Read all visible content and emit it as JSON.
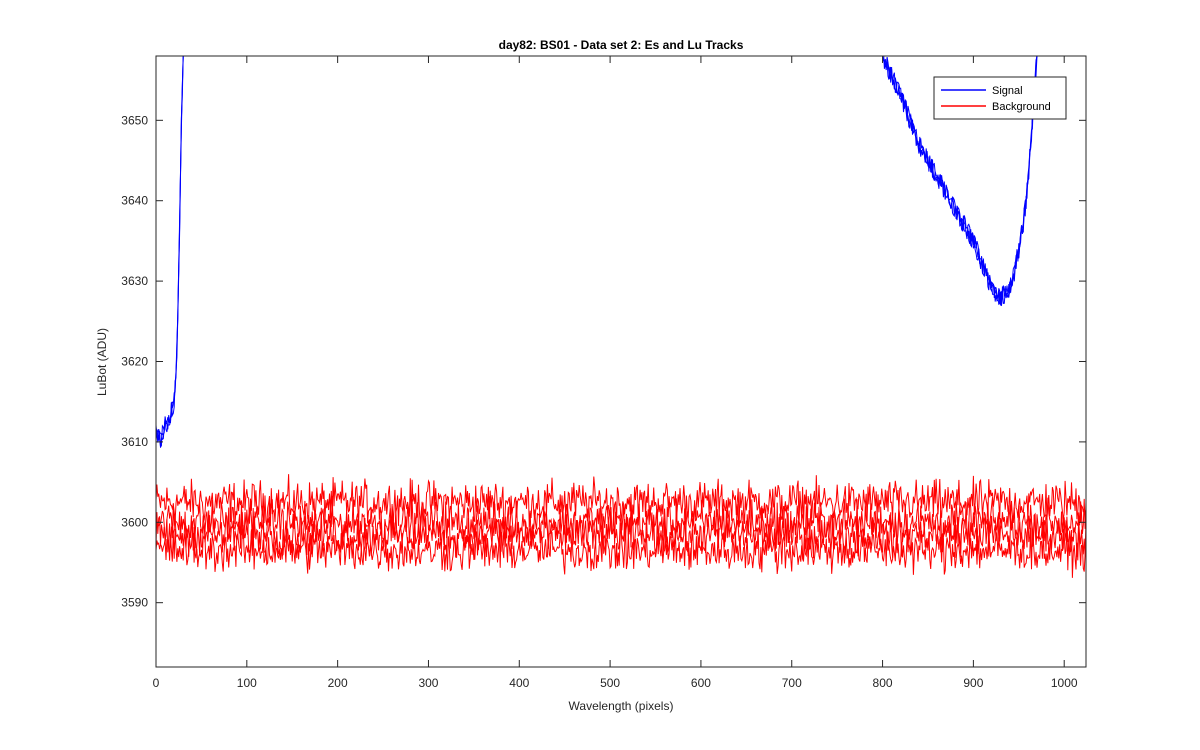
{
  "chart_data": {
    "type": "line",
    "title": "day82: BS01 - Data set 2: Es and Lu Tracks",
    "xlabel": "Wavelength (pixels)",
    "ylabel": "LuBot (ADU)",
    "xlim": [
      0,
      1024
    ],
    "ylim": [
      3582,
      3658
    ],
    "xticks": [
      0,
      100,
      200,
      300,
      400,
      500,
      600,
      700,
      800,
      900,
      1000
    ],
    "yticks": [
      3590,
      3600,
      3610,
      3620,
      3630,
      3640,
      3650
    ],
    "grid": false,
    "legend_position": "top-right",
    "series": [
      {
        "name": "Signal",
        "color": "#0000ff",
        "segments": [
          {
            "x": [
              0,
              5,
              10,
              15,
              20,
              22,
              24,
              26,
              28,
              30
            ],
            "y": [
              3611,
              3610,
              3612,
              3613,
              3615,
              3618,
              3625,
              3637,
              3650,
              3658
            ]
          },
          {
            "x": [
              800,
              820,
              840,
              860,
              880,
              900,
              910,
              920,
              930,
              940,
              945,
              950,
              955,
              960,
              965,
              970
            ],
            "y": [
              3658,
              3653,
              3647,
              3643,
              3639,
              3635,
              3632,
              3629,
              3628,
              3629,
              3631,
              3634,
              3637,
              3642,
              3650,
              3658
            ]
          }
        ]
      },
      {
        "name": "Background",
        "color": "#ff0000",
        "bands": [
          3602.5,
          3600,
          3598.5,
          3596.5
        ],
        "noise_amplitude": 2.6,
        "x_range": [
          0,
          1024
        ]
      }
    ]
  }
}
